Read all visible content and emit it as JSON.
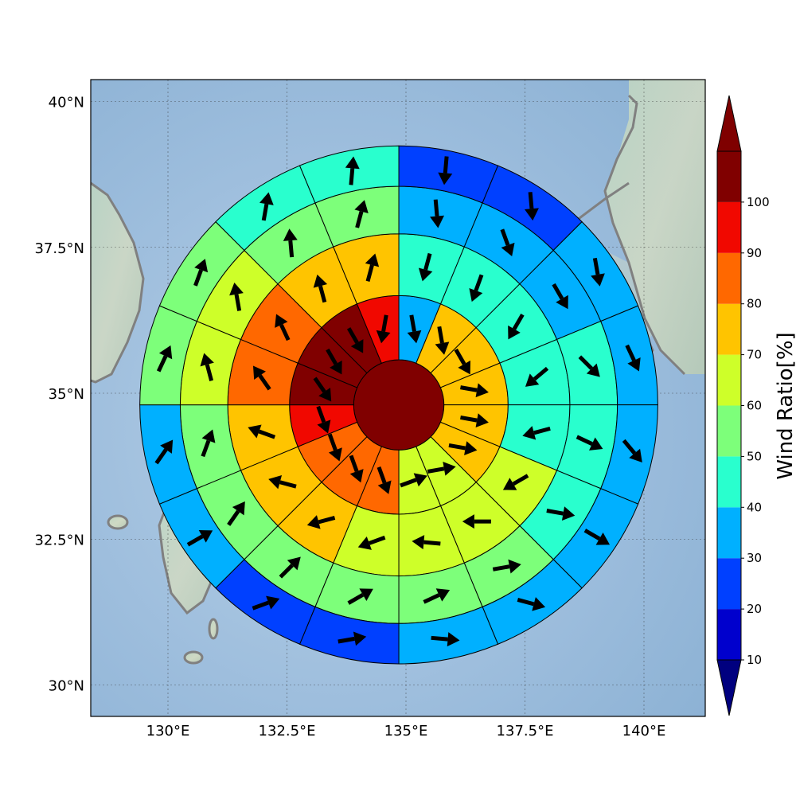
{
  "chart_data": {
    "type": "polar_sector_map",
    "title": "",
    "x_ticks": [
      "130°E",
      "132.5°E",
      "135°E",
      "137.5°E",
      "140°E"
    ],
    "y_ticks": [
      "40°N",
      "37.5°N",
      "35°N",
      "32.5°N",
      "30°N"
    ],
    "map_extent": {
      "lon": [
        128.3,
        141.3
      ],
      "lat": [
        29.3,
        40.2
      ]
    },
    "center": {
      "lon": 134.85,
      "lat": 34.8
    },
    "ring_radii_deg": [
      0.95,
      2.3,
      3.6,
      4.6,
      5.45
    ],
    "n_sectors": 16,
    "colorbar": {
      "label": "Wind Ratio[%]",
      "ticks": [
        "10",
        "20",
        "30",
        "40",
        "50",
        "60",
        "70",
        "80",
        "90",
        "100"
      ],
      "levels": [
        10,
        20,
        30,
        40,
        50,
        60,
        70,
        80,
        90,
        100
      ],
      "colors": [
        "#0000cd",
        "#0040ff",
        "#00b0ff",
        "#29ffce",
        "#7dff7a",
        "#ceff29",
        "#ffc400",
        "#ff6800",
        "#f10800",
        "#800000"
      ],
      "under_color": "#00007f",
      "over_color": "#7f0000"
    },
    "center_value": 100,
    "rings": [
      {
        "values": [
          38,
          72,
          72,
          72,
          72,
          72,
          65,
          65,
          85,
          85,
          85,
          95,
          100,
          100,
          100,
          92
        ],
        "directions": [
          170,
          170,
          150,
          100,
          100,
          100,
          80,
          70,
          160,
          160,
          160,
          160,
          145,
          150,
          150,
          190
        ]
      },
      {
        "values": [
          45,
          45,
          45,
          45,
          45,
          65,
          65,
          65,
          65,
          75,
          75,
          75,
          85,
          85,
          75,
          75
        ],
        "directions": [
          195,
          200,
          210,
          230,
          255,
          240,
          270,
          275,
          250,
          255,
          285,
          290,
          325,
          335,
          345,
          15
        ]
      },
      {
        "values": [
          33,
          33,
          33,
          42,
          42,
          42,
          58,
          58,
          55,
          55,
          55,
          55,
          62,
          62,
          55,
          55
        ],
        "directions": [
          175,
          160,
          150,
          135,
          115,
          100,
          80,
          65,
          60,
          45,
          35,
          20,
          345,
          350,
          355,
          15
        ]
      },
      {
        "values": [
          28,
          28,
          38,
          38,
          38,
          35,
          35,
          35,
          28,
          28,
          38,
          38,
          55,
          55,
          45,
          45
        ],
        "directions": [
          185,
          175,
          170,
          155,
          140,
          120,
          105,
          95,
          80,
          70,
          60,
          35,
          25,
          20,
          10,
          5
        ]
      }
    ]
  }
}
